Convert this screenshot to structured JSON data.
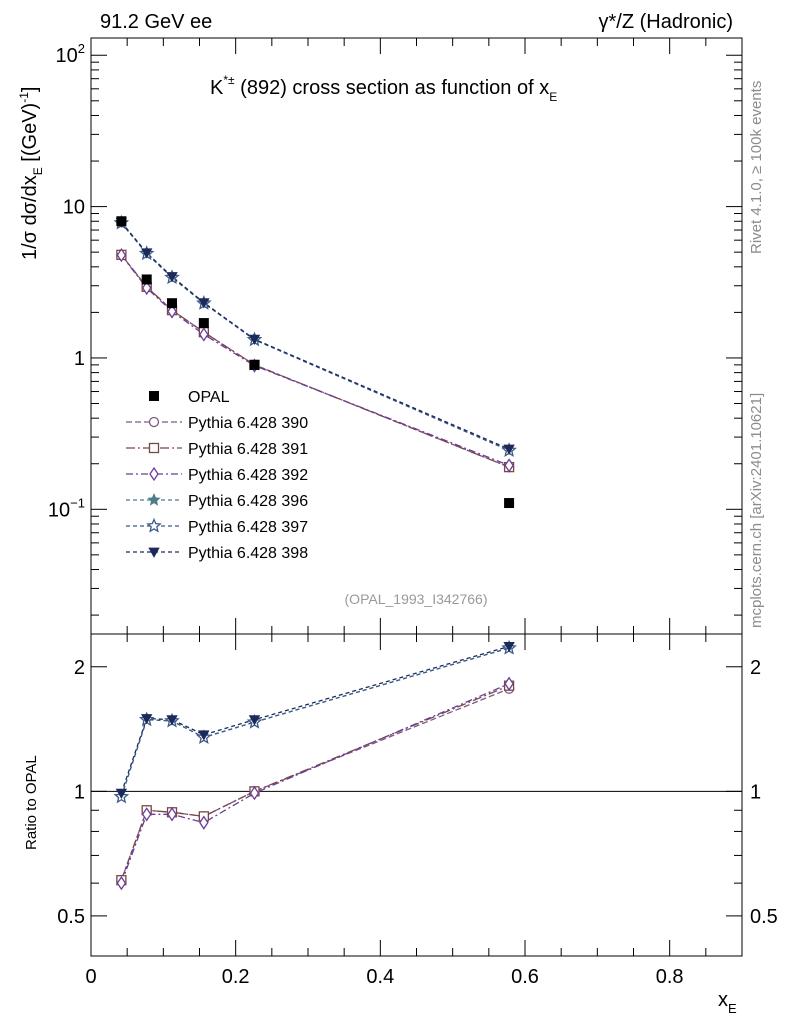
{
  "header": {
    "left_label": "91.2 GeV ee",
    "right_label": "γ*/Z (Hadronic)"
  },
  "side_text": {
    "top": "Rivet 4.1.0, ≥ 100k events",
    "bottom": "mcplots.cern.ch [arXiv:2401.10621]"
  },
  "analysis_id": "(OPAL_1993_I342766)",
  "chart_data": [
    {
      "panel": "main",
      "type": "line",
      "title": "K*± (892) cross section as function of x_E",
      "title_parts": {
        "particle": "K",
        "sup": "*±",
        "rest": " (892) cross section as function of x",
        "sub": "E"
      },
      "ylabel": "1/σ  dσ/dx_E [(GeV)^-1]",
      "ylabel_parts": {
        "a": "1/σ   dσ/dx",
        "sub": "E",
        "b": " [(GeV)",
        "sup": "-1",
        "c": "]"
      },
      "yscale": "log",
      "xlim": [
        0,
        0.9
      ],
      "ylim": [
        0.015,
        130
      ],
      "y_ticks": [
        {
          "value": 100,
          "base": "10",
          "exp": "2"
        },
        {
          "value": 10,
          "base": "10",
          "exp": ""
        },
        {
          "value": 1,
          "base": "1",
          "exp": ""
        },
        {
          "value": 0.1,
          "base": "10",
          "exp": "−1"
        }
      ],
      "x": [
        0.042,
        0.077,
        0.112,
        0.156,
        0.226,
        0.578
      ],
      "data": {
        "name": "OPAL",
        "values": [
          8.0,
          3.3,
          2.3,
          1.7,
          0.9,
          0.11
        ]
      },
      "legend_position": "lower-left",
      "series": [
        {
          "name": "Pythia 6.428 390",
          "color": "#7b5a86",
          "marker": "circle-open",
          "dash": "6,3",
          "values": [
            4.8,
            2.95,
            2.07,
            1.48,
            0.9,
            0.19
          ]
        },
        {
          "name": "Pythia 6.428 391",
          "color": "#7b4646",
          "marker": "square-open",
          "dash": "9,3,2,3",
          "values": [
            4.8,
            2.95,
            2.07,
            1.48,
            0.9,
            0.19
          ]
        },
        {
          "name": "Pythia 6.428 392",
          "color": "#6a3d9a",
          "marker": "diamond-open",
          "dash": "7,3,2,3",
          "values": [
            4.78,
            2.9,
            2.03,
            1.43,
            0.89,
            0.195
          ]
        },
        {
          "name": "Pythia 6.428 396",
          "color": "#4d7c8a",
          "marker": "star-filled",
          "dash": "4,3",
          "values": [
            7.8,
            4.9,
            3.4,
            2.3,
            1.32,
            0.245
          ]
        },
        {
          "name": "Pythia 6.428 397",
          "color": "#3b5b8a",
          "marker": "star-open",
          "dash": "4,3",
          "values": [
            7.8,
            4.9,
            3.4,
            2.3,
            1.32,
            0.245
          ]
        },
        {
          "name": "Pythia 6.428 398",
          "color": "#1c2a5a",
          "marker": "triangle-down-filled",
          "dash": "4,3",
          "values": [
            7.9,
            4.95,
            3.45,
            2.32,
            1.33,
            0.25
          ]
        }
      ]
    },
    {
      "panel": "ratio",
      "type": "line",
      "ylabel": "Ratio to OPAL",
      "xlabel": "x_E",
      "xlabel_parts": {
        "main": "x",
        "sub": "E"
      },
      "yscale": "log",
      "xlim": [
        0,
        0.9
      ],
      "ylim": [
        0.4,
        2.4
      ],
      "y_ticks": [
        0.5,
        1,
        2
      ],
      "y_tick_labels": [
        "0.5",
        "1",
        "2"
      ],
      "x_ticks": [
        0,
        0.2,
        0.4,
        0.6,
        0.8
      ],
      "x_tick_labels": [
        "0",
        "0.2",
        "0.4",
        "0.6",
        "0.8"
      ],
      "reference_line": 1,
      "x": [
        0.042,
        0.077,
        0.112,
        0.156,
        0.226,
        0.578
      ],
      "series": [
        {
          "name": "Pythia 6.428 390",
          "values": [
            0.61,
            0.9,
            0.89,
            0.87,
            1.0,
            1.77
          ]
        },
        {
          "name": "Pythia 6.428 391",
          "values": [
            0.61,
            0.9,
            0.89,
            0.87,
            1.0,
            1.8
          ]
        },
        {
          "name": "Pythia 6.428 392",
          "values": [
            0.6,
            0.88,
            0.88,
            0.84,
            0.99,
            1.82
          ]
        },
        {
          "name": "Pythia 6.428 396",
          "values": [
            0.97,
            1.49,
            1.48,
            1.35,
            1.47,
            2.22
          ]
        },
        {
          "name": "Pythia 6.428 397",
          "values": [
            0.97,
            1.49,
            1.48,
            1.35,
            1.47,
            2.22
          ]
        },
        {
          "name": "Pythia 6.428 398",
          "values": [
            0.99,
            1.5,
            1.49,
            1.37,
            1.49,
            2.24
          ]
        }
      ]
    }
  ]
}
